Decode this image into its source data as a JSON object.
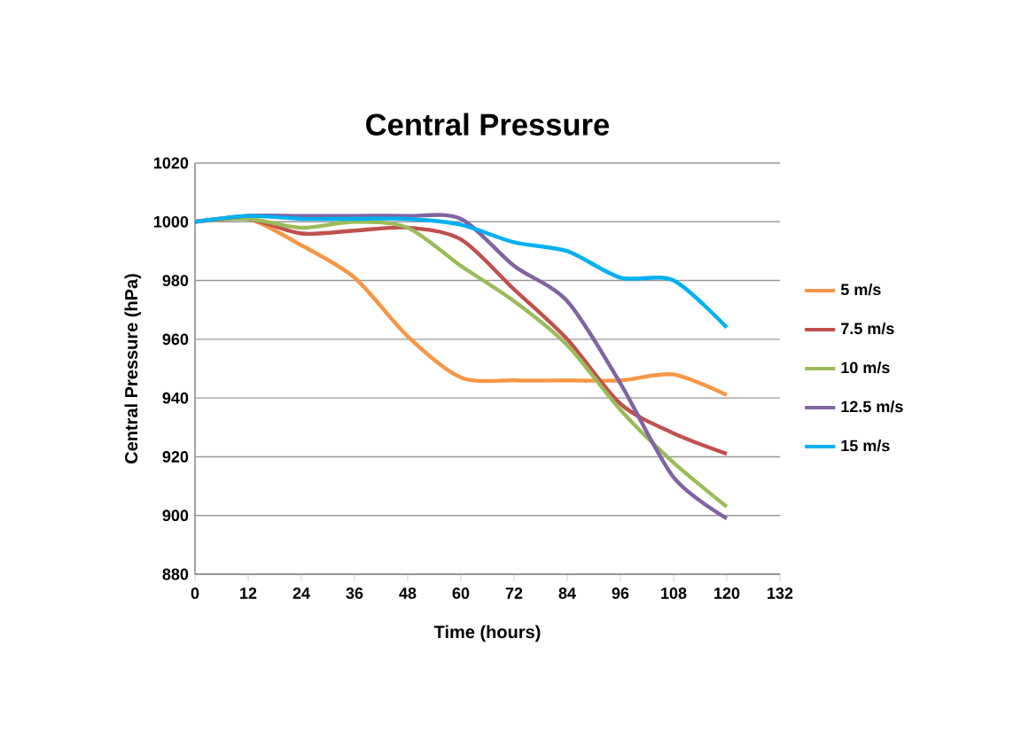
{
  "chart_data": {
    "type": "line",
    "title": "Central Pressure",
    "xlabel": "Time (hours)",
    "ylabel": "Central Pressure (hPa)",
    "x": [
      0,
      12,
      24,
      36,
      48,
      60,
      72,
      84,
      96,
      108,
      120
    ],
    "series": [
      {
        "name": "5 m/s",
        "color": "#f79646",
        "values": [
          1000,
          1001,
          992,
          981,
          961,
          947,
          946,
          946,
          946,
          948,
          941
        ]
      },
      {
        "name": "7.5 m/s",
        "color": "#c0504d",
        "values": [
          1000,
          1001,
          996,
          997,
          998,
          994,
          977,
          960,
          938,
          928,
          921
        ]
      },
      {
        "name": "10 m/s",
        "color": "#9bbb59",
        "values": [
          1000,
          1001,
          998,
          1000,
          998,
          985,
          973,
          958,
          936,
          918,
          903
        ]
      },
      {
        "name": "12.5 m/s",
        "color": "#8064a2",
        "values": [
          1000,
          1002,
          1002,
          1002,
          1002,
          1001,
          985,
          973,
          945,
          913,
          899
        ]
      },
      {
        "name": "15 m/s",
        "color": "#00b0f0",
        "values": [
          1000,
          1002,
          1001,
          1001,
          1001,
          999,
          993,
          990,
          981,
          980,
          964
        ]
      }
    ],
    "xlim": [
      0,
      132
    ],
    "xticks": [
      0,
      12,
      24,
      36,
      48,
      60,
      72,
      84,
      96,
      108,
      120,
      132
    ],
    "ylim": [
      880,
      1020
    ],
    "yticks": [
      880,
      900,
      920,
      940,
      960,
      980,
      1000,
      1020
    ],
    "grid": "y",
    "legend": "right",
    "marker": "none",
    "line_style": "solid"
  }
}
